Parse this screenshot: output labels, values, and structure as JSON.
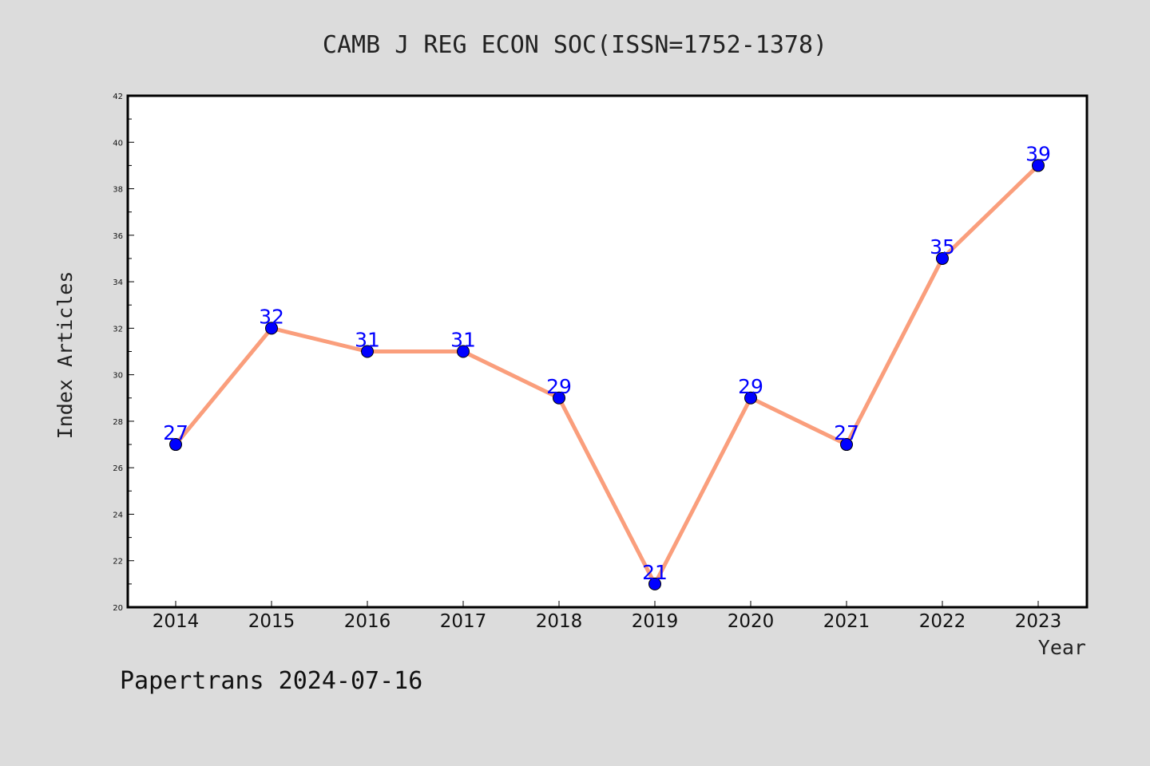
{
  "chart_data": {
    "type": "line",
    "title": "CAMB J REG ECON SOC(ISSN=1752-1378)",
    "xlabel": "Year",
    "ylabel": "Index Articles",
    "categories": [
      "2014",
      "2015",
      "2016",
      "2017",
      "2018",
      "2019",
      "2020",
      "2021",
      "2022",
      "2023"
    ],
    "values": [
      27,
      32,
      31,
      31,
      29,
      21,
      29,
      27,
      35,
      39
    ],
    "data_labels": [
      "27",
      "32",
      "31",
      "31",
      "29",
      "21",
      "29",
      "27",
      "35",
      "39"
    ],
    "ylim": [
      20,
      42
    ],
    "yticks": [
      20,
      22,
      24,
      26,
      28,
      30,
      32,
      34,
      36,
      38,
      40,
      42
    ],
    "ytick_labels": [
      "20",
      "22",
      "24",
      "26",
      "28",
      "30",
      "32",
      "34",
      "36",
      "38",
      "40",
      "42"
    ],
    "grid": false,
    "line_color": "#fa9e7c",
    "marker_color": "#0000ff",
    "label_color": "#0000ff",
    "plot_background": "#ffffff",
    "figure_background": "#dcdcdc"
  },
  "footer": {
    "text": "Papertrans 2024-07-16"
  }
}
